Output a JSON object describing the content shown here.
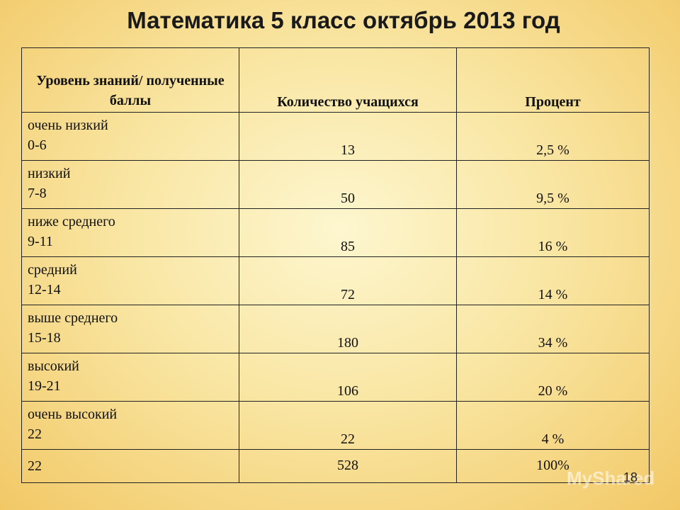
{
  "title": "Математика 5 класс октябрь 2013 год",
  "table": {
    "header": [
      "Уровень знаний/ полученные баллы",
      "Количество учащихся",
      "Процент"
    ],
    "rows": [
      {
        "level": "очень низкий",
        "range": "0-6",
        "count": "13",
        "percent": "2,5 %"
      },
      {
        "level": "низкий",
        "range": "7-8",
        "count": "50",
        "percent": "9,5 %"
      },
      {
        "level": "ниже среднего",
        "range": "9-11",
        "count": "85",
        "percent": "16 %"
      },
      {
        "level": "средний",
        "range": "12-14",
        "count": "72",
        "percent": "14 %"
      },
      {
        "level": "выше среднего",
        "range": "15-18",
        "count": "180",
        "percent": "34 %"
      },
      {
        "level": "высокий",
        "range": "19-21",
        "count": "106",
        "percent": "20 %"
      },
      {
        "level": "очень высокий",
        "range": "22",
        "count": "22",
        "percent": "4 %"
      }
    ],
    "total": {
      "range": "22",
      "count": "528",
      "percent": "100%"
    }
  },
  "page_number": "18",
  "watermark": "MyShared"
}
